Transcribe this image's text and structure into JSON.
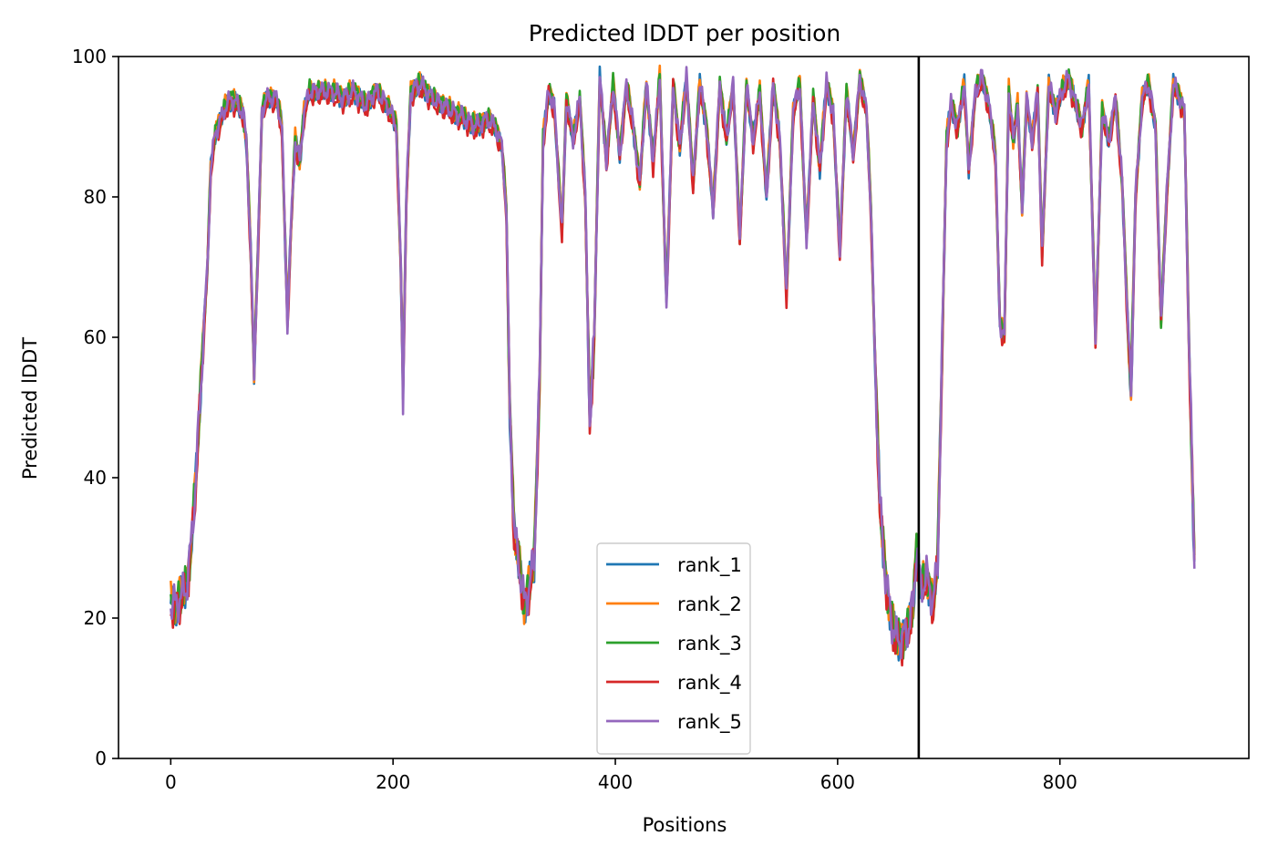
{
  "chart_data": {
    "type": "line",
    "title": "Predicted lDDT per position",
    "xlabel": "Positions",
    "ylabel": "Predicted lDDT",
    "xlim": [
      -47,
      970
    ],
    "ylim": [
      0,
      100
    ],
    "xticks": [
      0,
      200,
      400,
      600,
      800
    ],
    "yticks": [
      0,
      20,
      40,
      60,
      80,
      100
    ],
    "grid": false,
    "legend_position": "lower center",
    "chain_break_x": 673,
    "chain_break_color": "#000000",
    "series": [
      {
        "name": "rank_1",
        "color": "#1f77b4",
        "offset": 0.0,
        "phase": 0.0
      },
      {
        "name": "rank_2",
        "color": "#ff7f0e",
        "offset": 0.4,
        "phase": 1.3
      },
      {
        "name": "rank_3",
        "color": "#2ca02c",
        "offset": 0.2,
        "phase": 2.1
      },
      {
        "name": "rank_4",
        "color": "#d62728",
        "offset": -0.6,
        "phase": 3.4
      },
      {
        "name": "rank_5",
        "color": "#9467bd",
        "offset": 0.1,
        "phase": 4.7
      }
    ],
    "profile": [
      [
        0,
        22
      ],
      [
        5,
        22
      ],
      [
        10,
        23
      ],
      [
        15,
        25
      ],
      [
        18,
        30
      ],
      [
        22,
        38
      ],
      [
        26,
        50
      ],
      [
        30,
        62
      ],
      [
        33,
        70
      ],
      [
        36,
        84
      ],
      [
        40,
        89
      ],
      [
        45,
        91
      ],
      [
        50,
        93
      ],
      [
        55,
        94
      ],
      [
        60,
        93
      ],
      [
        65,
        92
      ],
      [
        68,
        88
      ],
      [
        72,
        72
      ],
      [
        75,
        55
      ],
      [
        78,
        70
      ],
      [
        82,
        92
      ],
      [
        86,
        94
      ],
      [
        90,
        94
      ],
      [
        95,
        94
      ],
      [
        100,
        90
      ],
      [
        105,
        62
      ],
      [
        108,
        75
      ],
      [
        112,
        88
      ],
      [
        116,
        85
      ],
      [
        120,
        92
      ],
      [
        125,
        95
      ],
      [
        135,
        95
      ],
      [
        145,
        95
      ],
      [
        155,
        94
      ],
      [
        165,
        95
      ],
      [
        175,
        93
      ],
      [
        185,
        95
      ],
      [
        195,
        93
      ],
      [
        203,
        90
      ],
      [
        207,
        70
      ],
      [
        209,
        52
      ],
      [
        212,
        80
      ],
      [
        216,
        95
      ],
      [
        225,
        96
      ],
      [
        235,
        94
      ],
      [
        245,
        93
      ],
      [
        255,
        92
      ],
      [
        265,
        91
      ],
      [
        275,
        90
      ],
      [
        285,
        91
      ],
      [
        292,
        90
      ],
      [
        298,
        87
      ],
      [
        302,
        78
      ],
      [
        305,
        50
      ],
      [
        309,
        32
      ],
      [
        313,
        28
      ],
      [
        318,
        22
      ],
      [
        322,
        24
      ],
      [
        327,
        28
      ],
      [
        332,
        55
      ],
      [
        335,
        88
      ],
      [
        340,
        95
      ],
      [
        345,
        93
      ],
      [
        352,
        75
      ],
      [
        356,
        94
      ],
      [
        362,
        88
      ],
      [
        368,
        94
      ],
      [
        373,
        80
      ],
      [
        377,
        48
      ],
      [
        381,
        60
      ],
      [
        386,
        97
      ],
      [
        392,
        85
      ],
      [
        398,
        96
      ],
      [
        404,
        86
      ],
      [
        410,
        96
      ],
      [
        416,
        90
      ],
      [
        422,
        82
      ],
      [
        428,
        96
      ],
      [
        434,
        85
      ],
      [
        440,
        97
      ],
      [
        446,
        65
      ],
      [
        452,
        96
      ],
      [
        458,
        87
      ],
      [
        464,
        97
      ],
      [
        470,
        82
      ],
      [
        476,
        96
      ],
      [
        482,
        90
      ],
      [
        488,
        78
      ],
      [
        494,
        96
      ],
      [
        500,
        88
      ],
      [
        506,
        96
      ],
      [
        512,
        74
      ],
      [
        518,
        96
      ],
      [
        524,
        88
      ],
      [
        530,
        95
      ],
      [
        536,
        80
      ],
      [
        542,
        96
      ],
      [
        548,
        88
      ],
      [
        554,
        66
      ],
      [
        560,
        92
      ],
      [
        566,
        96
      ],
      [
        572,
        74
      ],
      [
        578,
        94
      ],
      [
        584,
        84
      ],
      [
        590,
        96
      ],
      [
        596,
        92
      ],
      [
        602,
        72
      ],
      [
        608,
        95
      ],
      [
        614,
        86
      ],
      [
        620,
        97
      ],
      [
        626,
        92
      ],
      [
        630,
        78
      ],
      [
        634,
        55
      ],
      [
        638,
        36
      ],
      [
        643,
        26
      ],
      [
        648,
        20
      ],
      [
        652,
        17
      ],
      [
        658,
        17
      ],
      [
        663,
        18
      ],
      [
        668,
        22
      ],
      [
        671,
        30
      ],
      [
        675,
        24
      ],
      [
        680,
        26
      ],
      [
        686,
        22
      ],
      [
        690,
        28
      ],
      [
        694,
        58
      ],
      [
        698,
        88
      ],
      [
        702,
        93
      ],
      [
        708,
        90
      ],
      [
        714,
        96
      ],
      [
        718,
        84
      ],
      [
        724,
        95
      ],
      [
        730,
        97
      ],
      [
        736,
        93
      ],
      [
        742,
        86
      ],
      [
        746,
        62
      ],
      [
        750,
        60
      ],
      [
        754,
        95
      ],
      [
        758,
        88
      ],
      [
        762,
        93
      ],
      [
        766,
        78
      ],
      [
        770,
        94
      ],
      [
        775,
        88
      ],
      [
        780,
        95
      ],
      [
        784,
        72
      ],
      [
        790,
        96
      ],
      [
        796,
        92
      ],
      [
        802,
        95
      ],
      [
        808,
        97
      ],
      [
        814,
        93
      ],
      [
        820,
        90
      ],
      [
        826,
        96
      ],
      [
        832,
        60
      ],
      [
        838,
        92
      ],
      [
        844,
        88
      ],
      [
        850,
        94
      ],
      [
        856,
        82
      ],
      [
        861,
        62
      ],
      [
        864,
        52
      ],
      [
        868,
        80
      ],
      [
        874,
        94
      ],
      [
        880,
        96
      ],
      [
        886,
        90
      ],
      [
        891,
        62
      ],
      [
        896,
        80
      ],
      [
        902,
        96
      ],
      [
        908,
        94
      ],
      [
        912,
        92
      ],
      [
        916,
        60
      ],
      [
        921,
        28
      ]
    ]
  }
}
